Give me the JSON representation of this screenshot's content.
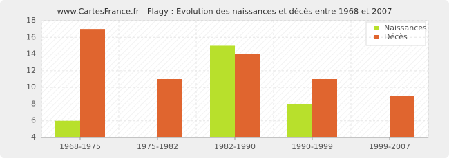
{
  "chart_data": {
    "type": "bar",
    "title": "www.CartesFrance.fr - Flagy : Evolution des naissances et décès entre 1968 et 2007",
    "categories": [
      "1968-1975",
      "1975-1982",
      "1982-1990",
      "1990-1999",
      "1999-2007"
    ],
    "series": [
      {
        "name": "Naissances",
        "color": "#b8e02c",
        "values": [
          6,
          4,
          15,
          8,
          4
        ]
      },
      {
        "name": "Décès",
        "color": "#e0652f",
        "values": [
          17,
          11,
          14,
          11,
          9
        ]
      }
    ],
    "ylim": [
      4,
      18
    ],
    "yticks": [
      4,
      6,
      8,
      10,
      12,
      14,
      16,
      18
    ],
    "grid": true,
    "legend": "top-right"
  }
}
